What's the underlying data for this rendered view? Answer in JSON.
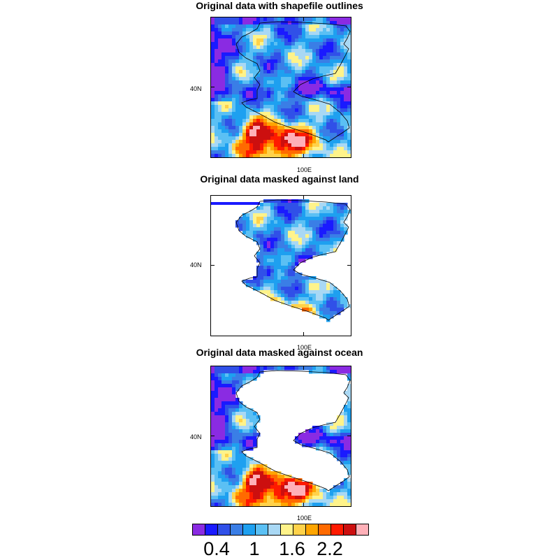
{
  "panels": [
    {
      "title": "Original data with shapefile outlines",
      "mask": "none"
    },
    {
      "title": "Original data masked against land",
      "mask": "land"
    },
    {
      "title": "Original data masked against ocean",
      "mask": "ocean"
    }
  ],
  "axis_labels": {
    "lat": "40N",
    "lon": "100E"
  },
  "colorbar": {
    "colors": [
      "#8a2be2",
      "#1a1aff",
      "#3050e8",
      "#3a7ee6",
      "#1ea0f0",
      "#5bc0f4",
      "#a9d8f4",
      "#fff38a",
      "#ffd24a",
      "#ffa500",
      "#ff6a00",
      "#ff1a00",
      "#cc0f0f",
      "#ffb0b8"
    ],
    "labels": [
      "0.4",
      "1",
      "1.6",
      "2.2"
    ]
  },
  "chart_data": {
    "type": "heatmap",
    "title": [
      "Original data with shapefile outlines",
      "Original data masked against land",
      "Original data masked against ocean"
    ],
    "xlabel": "",
    "ylabel": "",
    "x_tick_labels": [
      "100E"
    ],
    "y_tick_labels": [
      "40N"
    ],
    "color_levels": [
      0.4,
      1.0,
      1.6,
      2.2
    ]
  }
}
